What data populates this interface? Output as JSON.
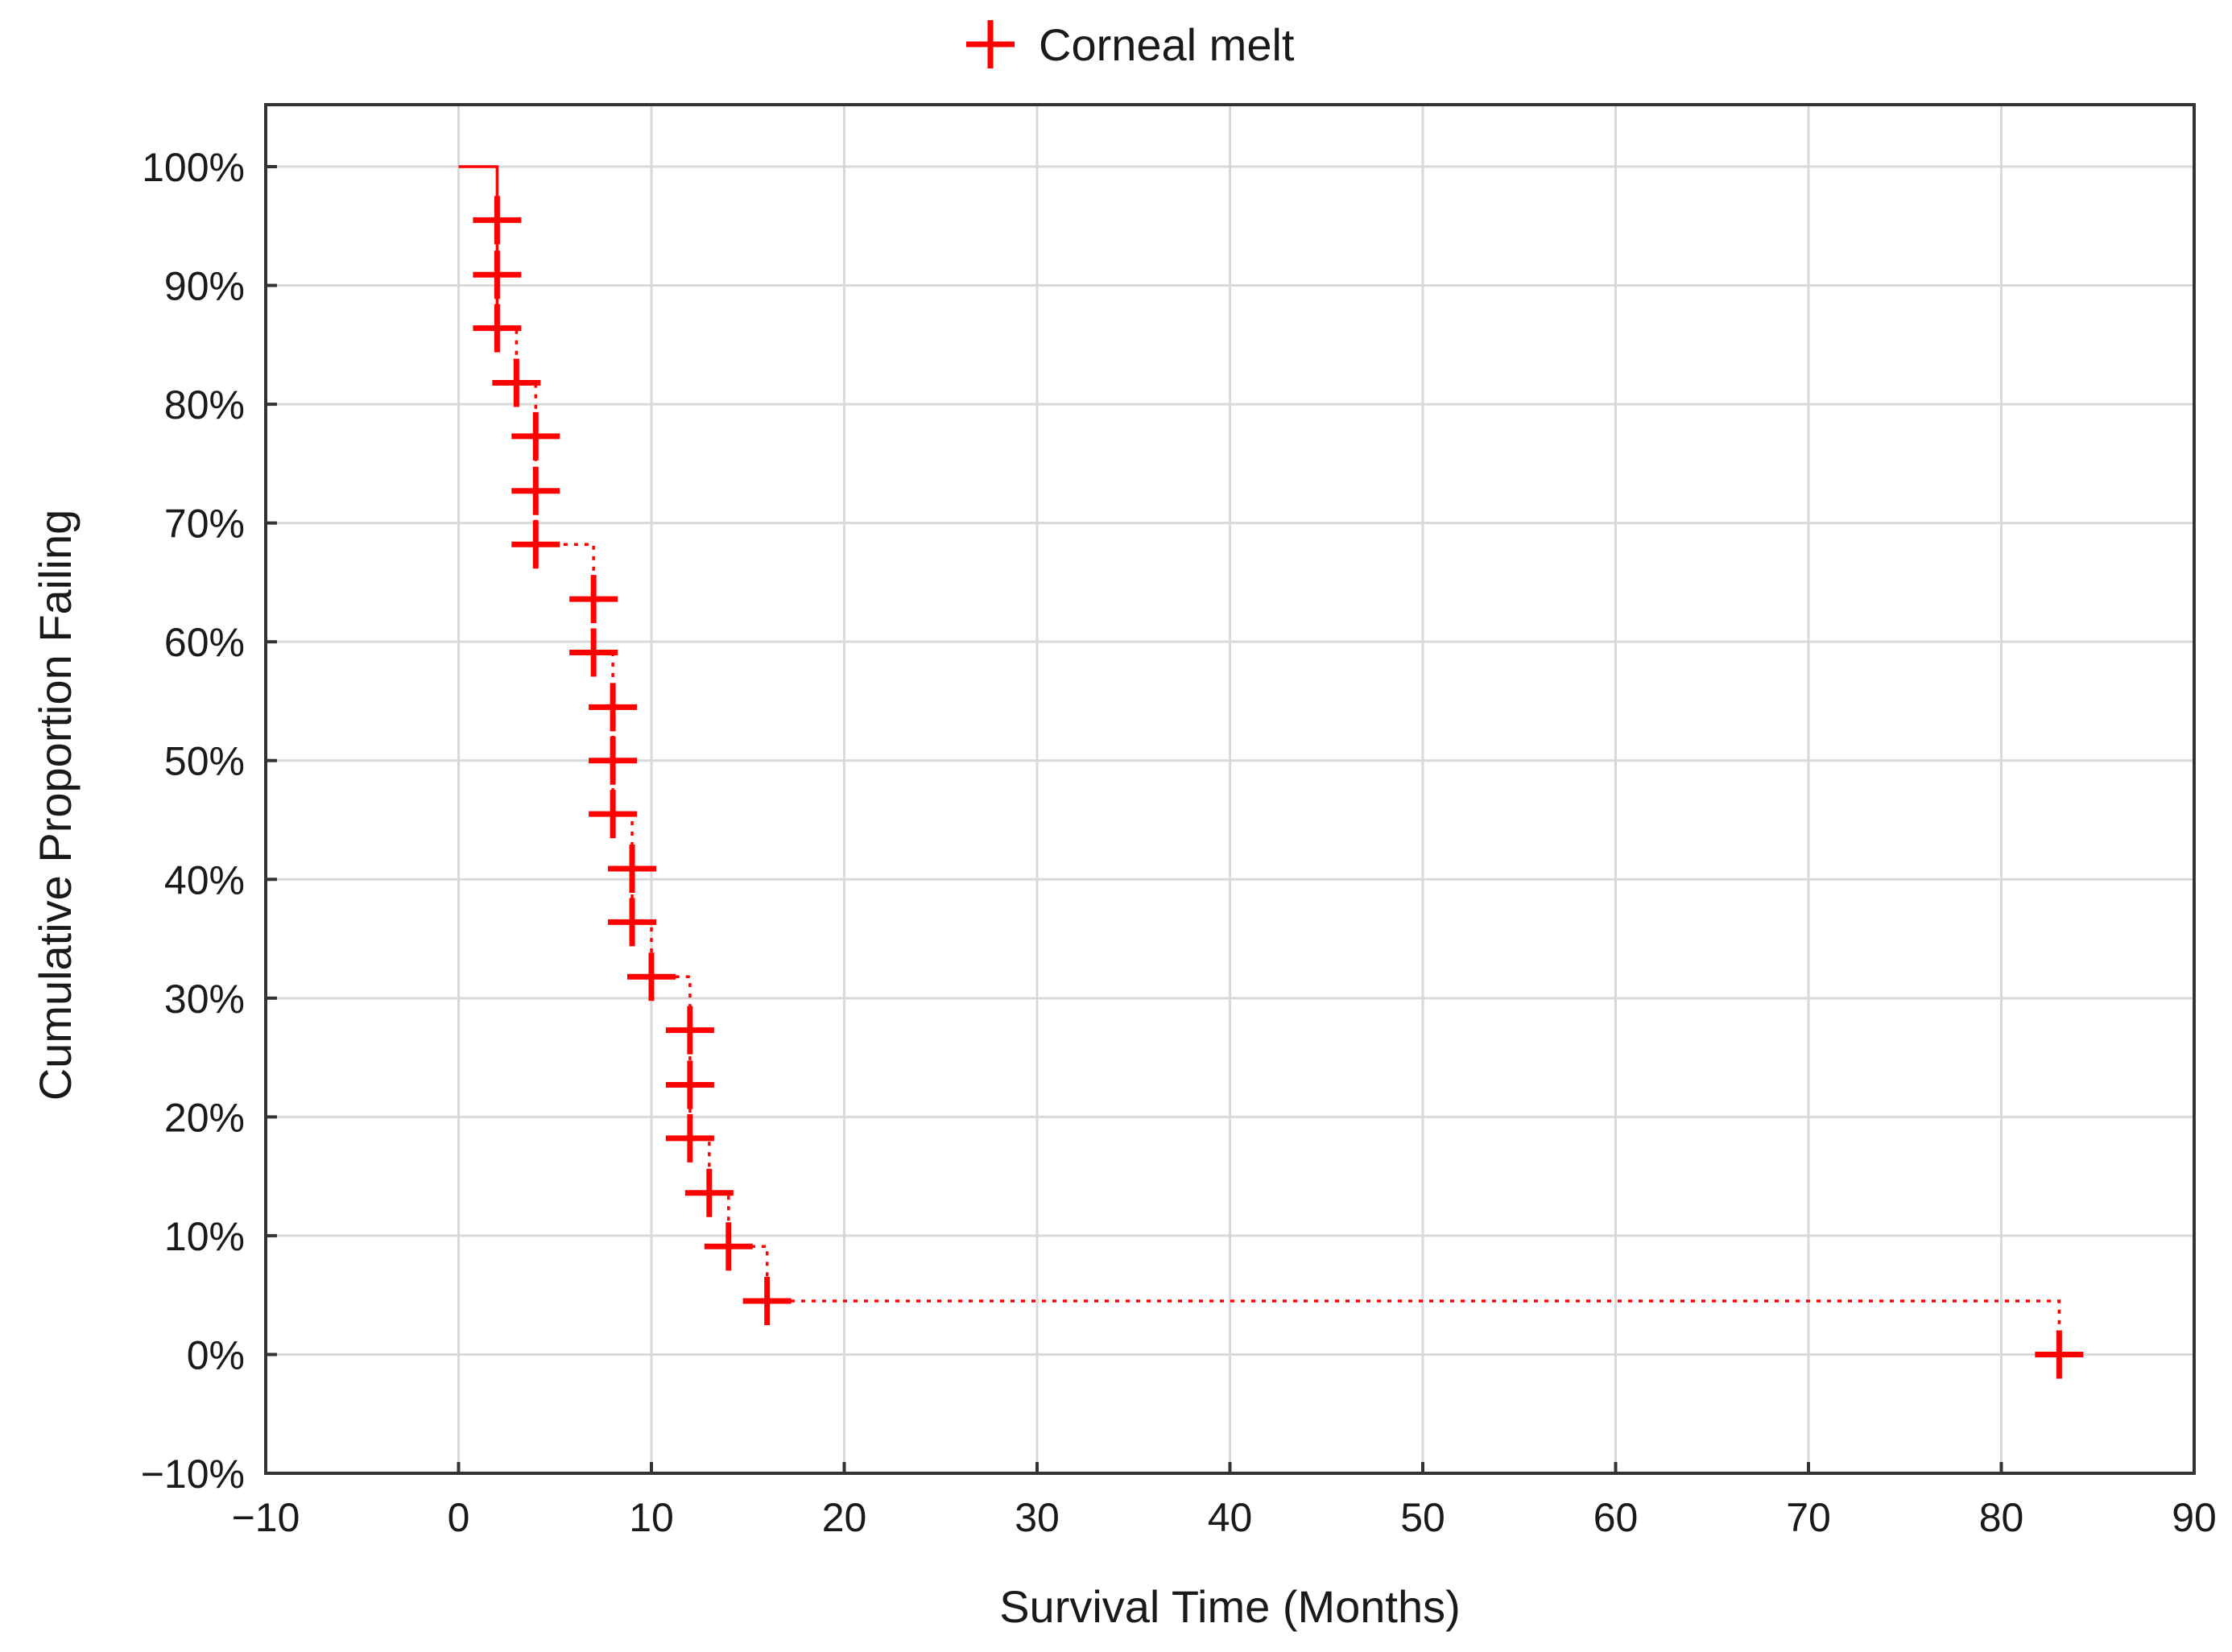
{
  "chart_data": {
    "type": "line",
    "title": "",
    "xlabel": "Survival Time (Months)",
    "ylabel": "Cumulative Proportion Failing",
    "xlim": [
      -10,
      90
    ],
    "ylim": [
      -0.1,
      1.05
    ],
    "x_ticks": [
      -10,
      0,
      10,
      20,
      30,
      40,
      50,
      60,
      70,
      80,
      90
    ],
    "x_tick_labels": [
      "−10",
      "0",
      "10",
      "20",
      "30",
      "40",
      "50",
      "60",
      "70",
      "80",
      "90"
    ],
    "y_ticks": [
      -0.1,
      0,
      0.1,
      0.2,
      0.3,
      0.4,
      0.5,
      0.6,
      0.7,
      0.8,
      0.9,
      1.0
    ],
    "y_tick_labels": [
      "−10%",
      "0%",
      "10%",
      "20%",
      "30%",
      "40%",
      "50%",
      "60%",
      "70%",
      "80%",
      "90%",
      "100%"
    ],
    "grid": true,
    "legend": {
      "placement": "top-center",
      "entries": [
        "Corneal melt"
      ]
    },
    "series": [
      {
        "name": "Corneal melt",
        "color": "#ff0000",
        "step_line": [
          [
            0,
            1.0
          ],
          [
            2,
            1.0
          ],
          [
            2,
            0.864
          ],
          [
            3,
            0.864
          ],
          [
            3,
            0.818
          ],
          [
            4,
            0.818
          ],
          [
            4,
            0.682
          ],
          [
            7,
            0.682
          ],
          [
            7,
            0.591
          ],
          [
            8,
            0.591
          ],
          [
            8,
            0.455
          ],
          [
            9,
            0.455
          ],
          [
            9,
            0.364
          ],
          [
            10,
            0.364
          ],
          [
            10,
            0.318
          ],
          [
            12,
            0.318
          ],
          [
            12,
            0.182
          ],
          [
            13,
            0.182
          ],
          [
            13,
            0.136
          ],
          [
            14,
            0.136
          ],
          [
            14,
            0.091
          ],
          [
            16,
            0.091
          ],
          [
            16,
            0.045
          ],
          [
            83,
            0.045
          ],
          [
            83,
            0.0
          ]
        ],
        "markers": [
          [
            2,
            0.955
          ],
          [
            2,
            0.909
          ],
          [
            2,
            0.864
          ],
          [
            3,
            0.818
          ],
          [
            4,
            0.773
          ],
          [
            4,
            0.727
          ],
          [
            4,
            0.682
          ],
          [
            7,
            0.636
          ],
          [
            7,
            0.591
          ],
          [
            8,
            0.545
          ],
          [
            8,
            0.5
          ],
          [
            8,
            0.455
          ],
          [
            9,
            0.409
          ],
          [
            9,
            0.364
          ],
          [
            10,
            0.318
          ],
          [
            12,
            0.273
          ],
          [
            12,
            0.227
          ],
          [
            12,
            0.182
          ],
          [
            13,
            0.136
          ],
          [
            14,
            0.091
          ],
          [
            16,
            0.045
          ],
          [
            83,
            0.0
          ]
        ],
        "marker_symbol": "cross"
      }
    ]
  }
}
